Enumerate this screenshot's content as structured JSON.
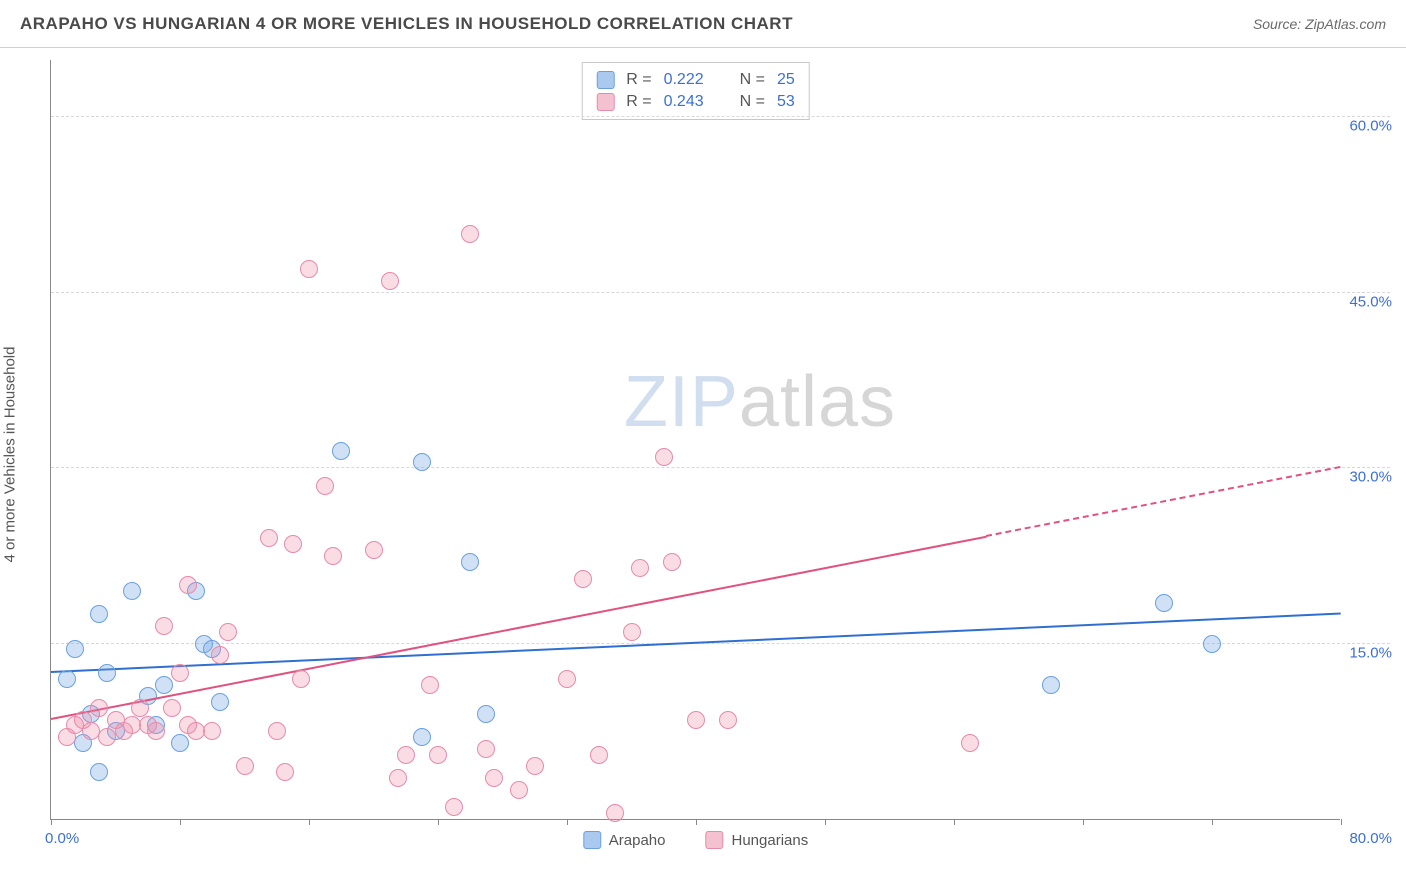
{
  "title": "ARAPAHO VS HUNGARIAN 4 OR MORE VEHICLES IN HOUSEHOLD CORRELATION CHART",
  "source": "Source: ZipAtlas.com",
  "y_axis_label": "4 or more Vehicles in Household",
  "watermark": {
    "part1": "ZIP",
    "part2": "atlas"
  },
  "chart": {
    "type": "scatter",
    "xlim": [
      0,
      80
    ],
    "ylim": [
      0,
      65
    ],
    "x_min_label": "0.0%",
    "x_max_label": "80.0%",
    "x_ticks": [
      0,
      8,
      16,
      24,
      32,
      40,
      48,
      56,
      64,
      72,
      80
    ],
    "y_gridlines": [
      {
        "value": 15,
        "label": "15.0%"
      },
      {
        "value": 30,
        "label": "30.0%"
      },
      {
        "value": 45,
        "label": "45.0%"
      },
      {
        "value": 60,
        "label": "60.0%"
      }
    ],
    "background_color": "#ffffff",
    "grid_color": "#d8d8d8",
    "marker_radius": 9,
    "marker_stroke_width": 1.5,
    "series": [
      {
        "name": "Arapaho",
        "fill": "rgba(120,170,230,0.35)",
        "stroke": "#6aa0e0",
        "swatch_fill": "#a9c9ee",
        "swatch_stroke": "#6aa0e0",
        "R": "0.222",
        "N": "25",
        "trend": {
          "x1": 0,
          "y1": 12.5,
          "x2": 80,
          "y2": 17.5,
          "color": "#2f6fd0",
          "dash_after_x": null
        },
        "points": [
          [
            1.5,
            14.5
          ],
          [
            3,
            17.5
          ],
          [
            3.5,
            12.5
          ],
          [
            2,
            6.5
          ],
          [
            3,
            4
          ],
          [
            5,
            19.5
          ],
          [
            6,
            10.5
          ],
          [
            6.5,
            8
          ],
          [
            8,
            6.5
          ],
          [
            9,
            19.5
          ],
          [
            9.5,
            15
          ],
          [
            10,
            14.5
          ],
          [
            10.5,
            10
          ],
          [
            18,
            31.5
          ],
          [
            23,
            30.5
          ],
          [
            23,
            7
          ],
          [
            26,
            22
          ],
          [
            62,
            11.5
          ],
          [
            69,
            18.5
          ],
          [
            72,
            15
          ],
          [
            1,
            12
          ],
          [
            2.5,
            9
          ],
          [
            4,
            7.5
          ],
          [
            7,
            11.5
          ],
          [
            27,
            9
          ]
        ]
      },
      {
        "name": "Hungarians",
        "fill": "rgba(240,140,170,0.3)",
        "stroke": "#e78aa9",
        "swatch_fill": "#f4c1d1",
        "swatch_stroke": "#e78aa9",
        "R": "0.243",
        "N": "53",
        "trend": {
          "x1": 0,
          "y1": 8.5,
          "x2": 80,
          "y2": 30,
          "color": "#e0527f",
          "dash_after_x": 58
        },
        "points": [
          [
            1,
            7
          ],
          [
            1.5,
            8
          ],
          [
            2,
            8.5
          ],
          [
            2.5,
            7.5
          ],
          [
            3,
            9.5
          ],
          [
            3.5,
            7
          ],
          [
            4,
            8.5
          ],
          [
            4.5,
            7.5
          ],
          [
            5,
            8
          ],
          [
            5.5,
            9.5
          ],
          [
            6,
            8
          ],
          [
            6.5,
            7.5
          ],
          [
            7,
            16.5
          ],
          [
            7.5,
            9.5
          ],
          [
            8,
            12.5
          ],
          [
            8.5,
            8
          ],
          [
            8.5,
            20
          ],
          [
            9,
            7.5
          ],
          [
            10,
            7.5
          ],
          [
            10.5,
            14
          ],
          [
            11,
            16
          ],
          [
            12,
            4.5
          ],
          [
            13.5,
            24
          ],
          [
            14,
            7.5
          ],
          [
            14.5,
            4
          ],
          [
            15,
            23.5
          ],
          [
            15.5,
            12
          ],
          [
            16,
            47
          ],
          [
            17,
            28.5
          ],
          [
            17.5,
            22.5
          ],
          [
            20,
            23
          ],
          [
            21,
            46
          ],
          [
            21.5,
            3.5
          ],
          [
            22,
            5.5
          ],
          [
            23.5,
            11.5
          ],
          [
            24,
            5.5
          ],
          [
            25,
            1
          ],
          [
            26,
            50
          ],
          [
            27,
            6
          ],
          [
            27.5,
            3.5
          ],
          [
            29,
            2.5
          ],
          [
            30,
            4.5
          ],
          [
            32,
            12
          ],
          [
            33,
            20.5
          ],
          [
            34,
            5.5
          ],
          [
            35,
            0.5
          ],
          [
            36,
            16
          ],
          [
            36.5,
            21.5
          ],
          [
            38,
            31
          ],
          [
            38.5,
            22
          ],
          [
            42,
            8.5
          ],
          [
            57,
            6.5
          ],
          [
            40,
            8.5
          ]
        ]
      }
    ]
  },
  "stats_legend": {
    "R_label": "R =",
    "N_label": "N ="
  },
  "bottom_legend": [
    "Arapaho",
    "Hungarians"
  ]
}
